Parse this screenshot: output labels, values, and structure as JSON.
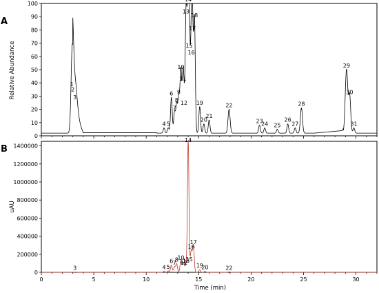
{
  "chart_data": [
    {
      "panel": "A",
      "type": "line",
      "ylabel": "Relative Abundance",
      "xlim": [
        0,
        32
      ],
      "ylim": [
        0,
        100
      ],
      "xticks": [
        0,
        5,
        10,
        15,
        20,
        25,
        30
      ],
      "yticks": [
        0,
        10,
        20,
        30,
        40,
        50,
        60,
        70,
        80,
        90,
        100
      ],
      "baseline": 2,
      "peaks": [
        {
          "label": "1",
          "x": 2.9,
          "y": 34,
          "w": 0.1
        },
        {
          "label": "2",
          "x": 3.0,
          "y": 30,
          "w": 0.1
        },
        {
          "label": "3",
          "x": 3.2,
          "y": 24,
          "w": 0.2
        },
        {
          "label": "4",
          "x": 11.7,
          "y": 4,
          "w": 0.08
        },
        {
          "label": "5",
          "x": 12.1,
          "y": 4,
          "w": 0.08
        },
        {
          "label": "6",
          "x": 12.4,
          "y": 27,
          "w": 0.08
        },
        {
          "label": "7",
          "x": 12.7,
          "y": 16,
          "w": 0.08
        },
        {
          "label": "8",
          "x": 12.9,
          "y": 22,
          "w": 0.08
        },
        {
          "label": "9",
          "x": 13.1,
          "y": 28,
          "w": 0.08
        },
        {
          "label": "10",
          "x": 13.3,
          "y": 47,
          "w": 0.08
        },
        {
          "label": "11",
          "x": 13.5,
          "y": 38,
          "w": 0.08
        },
        {
          "label": "12",
          "x": 13.6,
          "y": 20,
          "w": 0.08
        },
        {
          "label": "13",
          "x": 13.8,
          "y": 89,
          "w": 0.08
        },
        {
          "label": "14",
          "x": 14.0,
          "y": 98,
          "w": 0.09
        },
        {
          "label": "15",
          "x": 14.1,
          "y": 63,
          "w": 0.08
        },
        {
          "label": "16",
          "x": 14.3,
          "y": 58,
          "w": 0.08
        },
        {
          "label": "17",
          "x": 14.4,
          "y": 76,
          "w": 0.08
        },
        {
          "label": "18",
          "x": 14.6,
          "y": 86,
          "w": 0.08
        },
        {
          "label": "19",
          "x": 15.1,
          "y": 20,
          "w": 0.08
        },
        {
          "label": "20",
          "x": 15.5,
          "y": 7,
          "w": 0.08
        },
        {
          "label": "21",
          "x": 16.0,
          "y": 10,
          "w": 0.08
        },
        {
          "label": "22",
          "x": 17.9,
          "y": 18,
          "w": 0.1
        },
        {
          "label": "23",
          "x": 20.8,
          "y": 6,
          "w": 0.08
        },
        {
          "label": "24",
          "x": 21.3,
          "y": 4,
          "w": 0.08
        },
        {
          "label": "25",
          "x": 22.5,
          "y": 3,
          "w": 0.08
        },
        {
          "label": "26",
          "x": 23.5,
          "y": 7,
          "w": 0.08
        },
        {
          "label": "27",
          "x": 24.2,
          "y": 4,
          "w": 0.08
        },
        {
          "label": "28",
          "x": 24.8,
          "y": 19,
          "w": 0.1
        },
        {
          "label": "29",
          "x": 29.1,
          "y": 48,
          "w": 0.12
        },
        {
          "label": "30",
          "x": 29.4,
          "y": 28,
          "w": 0.1
        },
        {
          "label": "31",
          "x": 29.8,
          "y": 4,
          "w": 0.08
        }
      ]
    },
    {
      "panel": "B",
      "type": "line",
      "ylabel": "uAU",
      "xlabel": "Time (min)",
      "xlim": [
        0,
        32
      ],
      "ylim": [
        0,
        1450000
      ],
      "xticks": [
        0,
        5,
        10,
        15,
        20,
        25,
        30
      ],
      "yticks": [
        0,
        200000,
        400000,
        600000,
        800000,
        1000000,
        1200000,
        1400000
      ],
      "baseline": 0,
      "peaks": [
        {
          "label": "3",
          "x": 3.2,
          "y": 2000,
          "w": 0.2
        },
        {
          "label": "4",
          "x": 11.7,
          "y": 10000,
          "w": 0.08
        },
        {
          "label": "5",
          "x": 12.1,
          "y": 15000,
          "w": 0.08
        },
        {
          "label": "6",
          "x": 12.4,
          "y": 80000,
          "w": 0.08
        },
        {
          "label": "7",
          "x": 12.7,
          "y": 60000,
          "w": 0.08
        },
        {
          "label": "8",
          "x": 12.9,
          "y": 95000,
          "w": 0.08
        },
        {
          "label": "10",
          "x": 13.3,
          "y": 120000,
          "w": 0.08
        },
        {
          "label": "11",
          "x": 13.5,
          "y": 75000,
          "w": 0.08
        },
        {
          "label": "12",
          "x": 13.6,
          "y": 60000,
          "w": 0.08
        },
        {
          "label": "13",
          "x": 13.8,
          "y": 85000,
          "w": 0.08
        },
        {
          "label": "14",
          "x": 14.0,
          "y": 1420000,
          "w": 0.07
        },
        {
          "label": "15",
          "x": 14.1,
          "y": 100000,
          "w": 0.08
        },
        {
          "label": "16",
          "x": 14.3,
          "y": 240000,
          "w": 0.08
        },
        {
          "label": "17",
          "x": 14.5,
          "y": 290000,
          "w": 0.08
        },
        {
          "label": "19",
          "x": 15.1,
          "y": 30000,
          "w": 0.08
        },
        {
          "label": "20",
          "x": 15.6,
          "y": 10000,
          "w": 0.08
        },
        {
          "label": "22",
          "x": 17.9,
          "y": 5000,
          "w": 0.1
        }
      ]
    }
  ]
}
